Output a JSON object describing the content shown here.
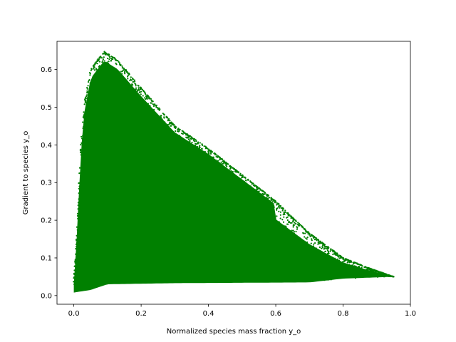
{
  "chart_data": {
    "type": "scatter",
    "title": "",
    "xlabel": "Normalized species mass fraction y_o",
    "ylabel": "Gradient to species y_o",
    "xlim": [
      -0.05,
      1.0
    ],
    "ylim": [
      -0.023,
      0.675
    ],
    "xticks": [
      0.0,
      0.2,
      0.4,
      0.6,
      0.8,
      1.0
    ],
    "xtick_labels": [
      "0.0",
      "0.2",
      "0.4",
      "0.6",
      "0.8",
      "1.0"
    ],
    "yticks": [
      0.0,
      0.1,
      0.2,
      0.3,
      0.4,
      0.5,
      0.6
    ],
    "ytick_labels": [
      "0.0",
      "0.1",
      "0.2",
      "0.3",
      "0.4",
      "0.5",
      "0.6"
    ],
    "grid": false,
    "marker_color": "#008000",
    "point_cloud": {
      "x_range": [
        0.0,
        0.95
      ],
      "y_range": [
        0.008,
        0.648
      ],
      "peak": {
        "x": 0.09,
        "y": 0.648
      },
      "upper_envelope": [
        [
          0.0,
          0.03
        ],
        [
          0.01,
          0.18
        ],
        [
          0.02,
          0.38
        ],
        [
          0.03,
          0.5
        ],
        [
          0.05,
          0.6
        ],
        [
          0.09,
          0.648
        ],
        [
          0.13,
          0.625
        ],
        [
          0.2,
          0.55
        ],
        [
          0.3,
          0.45
        ],
        [
          0.4,
          0.39
        ],
        [
          0.5,
          0.32
        ],
        [
          0.6,
          0.25
        ],
        [
          0.7,
          0.165
        ],
        [
          0.8,
          0.1
        ],
        [
          0.87,
          0.075
        ],
        [
          0.95,
          0.05
        ]
      ],
      "lower_envelope": [
        [
          0.0,
          0.008
        ],
        [
          0.05,
          0.015
        ],
        [
          0.1,
          0.03
        ],
        [
          0.3,
          0.033
        ],
        [
          0.7,
          0.035
        ],
        [
          0.8,
          0.045
        ],
        [
          0.95,
          0.05
        ]
      ]
    }
  }
}
